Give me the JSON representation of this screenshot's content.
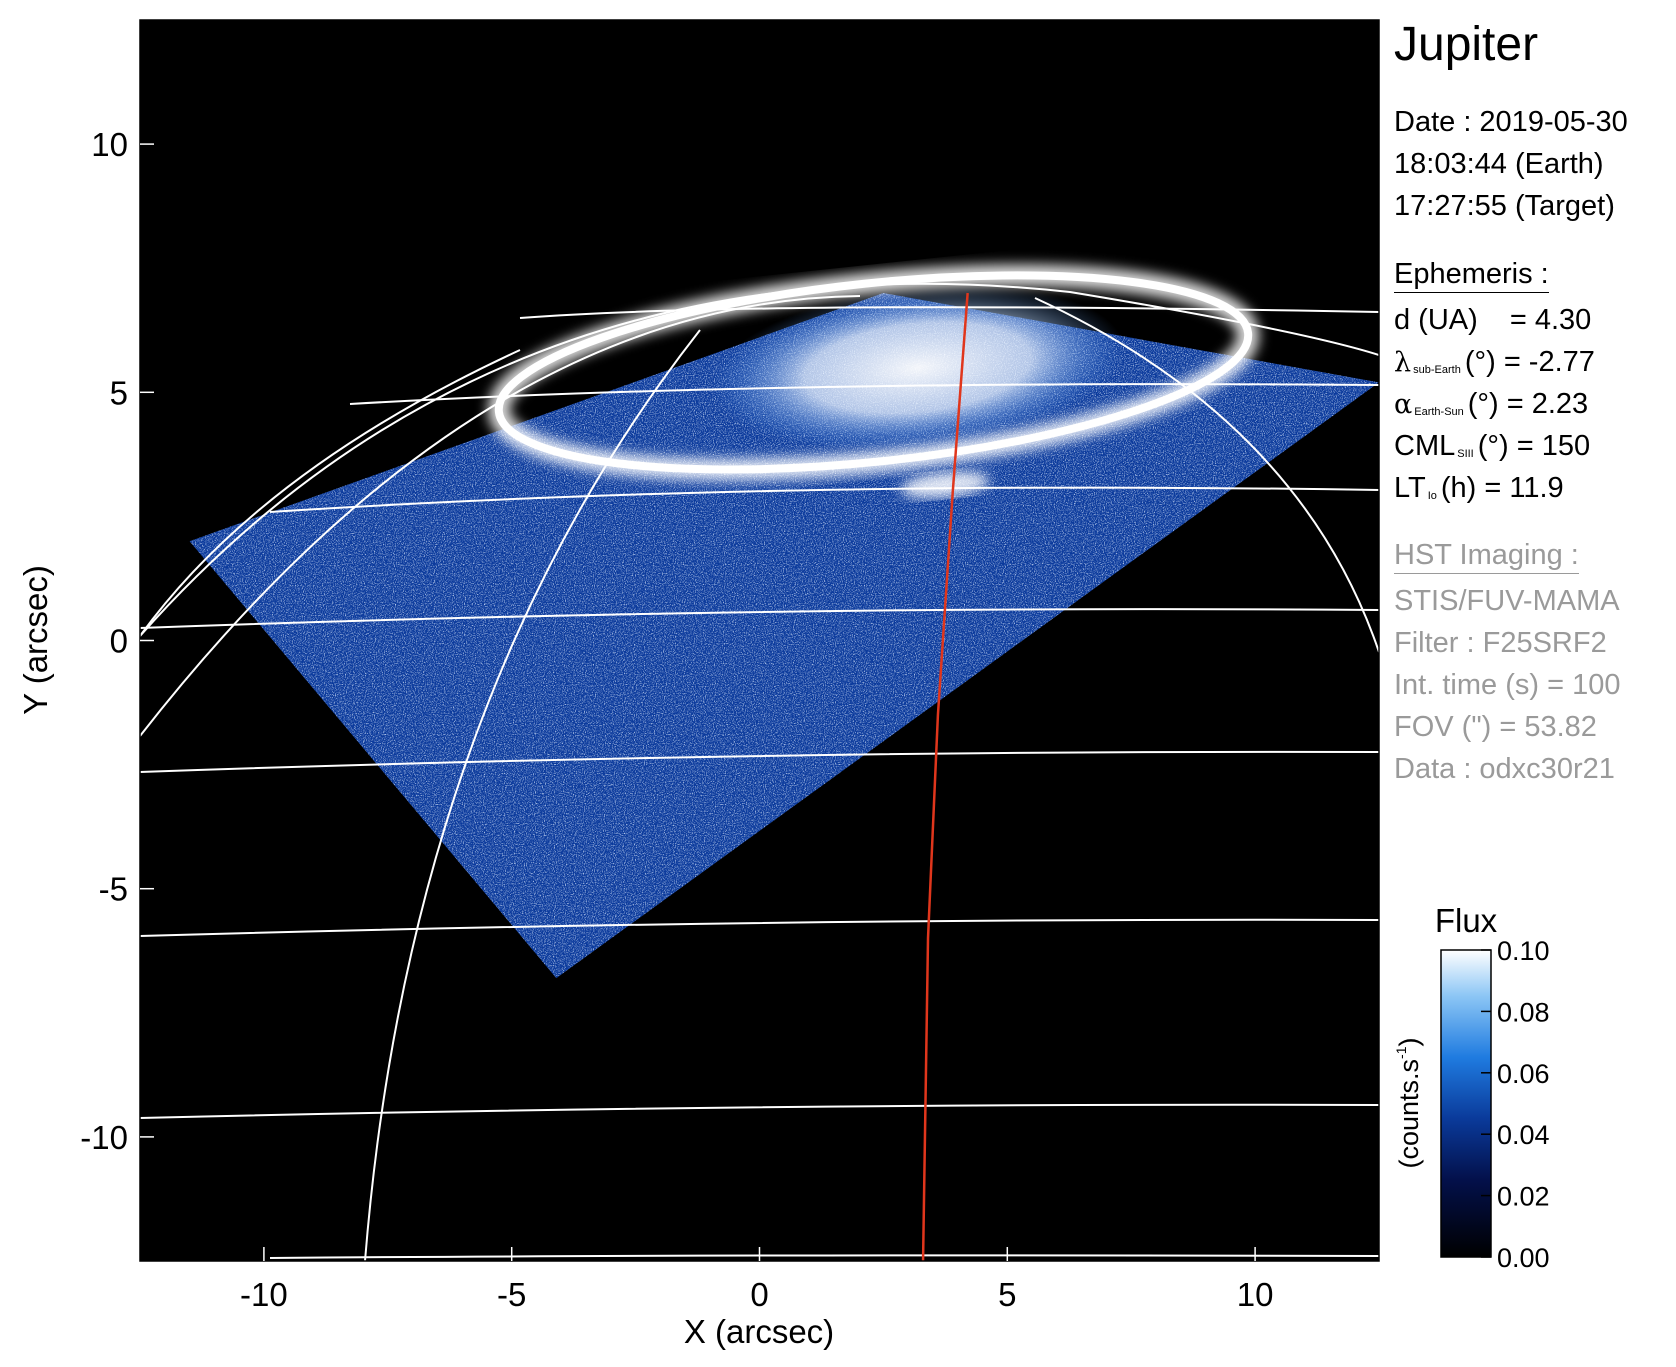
{
  "panel": {
    "title": "Jupiter",
    "date_line": "Date : 2019-05-30",
    "earth_time": "18:03:44 (Earth)",
    "target_time": "17:27:55 (Target)",
    "ephemeris_heading": "Ephemeris :",
    "ephemeris": {
      "distance": {
        "label": "d (UA)",
        "value": "= 4.30"
      },
      "sub_earth_lat": {
        "symbol": "λ",
        "subscript": "sub-Earth",
        "unit": "(°)",
        "value": "= -2.77"
      },
      "phase_angle": {
        "symbol": "α",
        "subscript": "Earth-Sun",
        "unit": "(°)",
        "value": "= 2.23"
      },
      "cml": {
        "symbol": "CML",
        "subscript": "SIII",
        "unit": "(°)",
        "value": "= 150"
      },
      "lt_io": {
        "symbol": "LT",
        "subscript": "Io",
        "unit": "(h)",
        "value": "= 11.9"
      }
    },
    "hst_heading": "HST Imaging :",
    "hst": {
      "instrument": "STIS/FUV-MAMA",
      "filter": "Filter : F25SRF2",
      "int_time": "Int. time (s) = 100",
      "fov": "FOV (\") = 53.82",
      "data": "Data : odxc30r21"
    }
  },
  "colors": {
    "background": "#000000",
    "grid": "#ffffff",
    "footprint": "#e0361c",
    "flux_low": "#000000",
    "flux_mid": "#0a3a9a",
    "flux_high": "#ffffff"
  },
  "chart_data": {
    "type": "heatmap",
    "xlabel": "X (arcsec)",
    "ylabel": "Y (arcsec)",
    "xlim": [
      -12.5,
      12.5
    ],
    "ylim": [
      -12.5,
      12.5
    ],
    "x_ticks": [
      -10,
      -5,
      0,
      5,
      10
    ],
    "y_ticks": [
      -10,
      -5,
      0,
      5,
      10
    ],
    "x_tick_labels": [
      "-10",
      "-5",
      "0",
      "5",
      "10"
    ],
    "y_tick_labels": [
      "-10",
      "-5",
      "0",
      "5",
      "10"
    ],
    "colorbar": {
      "title": "Flux",
      "label": "(counts.s",
      "label_exp": "-1",
      "label_end": ")",
      "min": 0.0,
      "max": 0.1,
      "ticks": [
        0.0,
        0.02,
        0.04,
        0.06,
        0.08,
        0.1
      ],
      "tick_labels": [
        "0.00",
        "0.02",
        "0.04",
        "0.06",
        "0.08",
        "0.10"
      ]
    },
    "detector_footprint_corners": [
      [
        -11.5,
        2.0
      ],
      [
        -4.1,
        -6.8
      ],
      [
        12.5,
        5.2
      ],
      [
        2.5,
        7.0
      ]
    ],
    "auroral_oval": {
      "center": [
        2.3,
        5.4
      ],
      "radii": [
        7.6,
        1.8
      ],
      "tilt_deg": -6
    },
    "io_footprint_track": [
      [
        4.2,
        7.0
      ],
      [
        3.9,
        3.0
      ],
      [
        3.6,
        -1.5
      ],
      [
        3.4,
        -6.0
      ],
      [
        3.3,
        -12.5
      ]
    ]
  }
}
